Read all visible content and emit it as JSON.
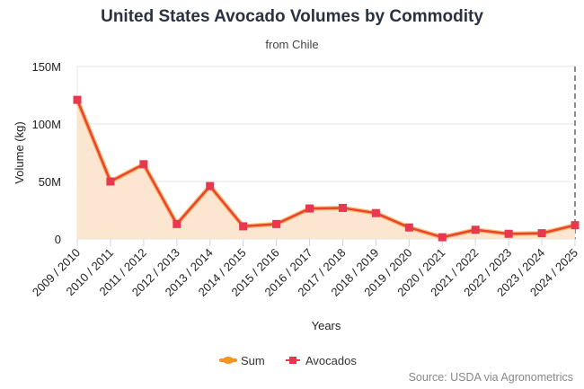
{
  "chart_data": {
    "type": "area",
    "title": "United States Avocado Volumes by Commodity",
    "subtitle": "from Chile",
    "xlabel": "Years",
    "ylabel": "Volume (kg)",
    "ylim": [
      0,
      150000000
    ],
    "yticks": [
      {
        "v": 0,
        "label": "0"
      },
      {
        "v": 50000000,
        "label": "50M"
      },
      {
        "v": 100000000,
        "label": "100M"
      },
      {
        "v": 150000000,
        "label": "150M"
      }
    ],
    "categories": [
      "2009 / 2010",
      "2010 / 2011",
      "2011 / 2012",
      "2012 / 2013",
      "2013 / 2014",
      "2014 / 2015",
      "2015 / 2016",
      "2016 / 2017",
      "2017 / 2018",
      "2018 / 2019",
      "2019 / 2020",
      "2020 / 2021",
      "2021 / 2022",
      "2022 / 2023",
      "2023 / 2024",
      "2024 / 2025"
    ],
    "series": [
      {
        "name": "Sum",
        "color": "#f7931e",
        "values": [
          121000000,
          50000000,
          65000000,
          13000000,
          46000000,
          11000000,
          13000000,
          26500000,
          27000000,
          22500000,
          10000000,
          1500000,
          8000000,
          4500000,
          5000000,
          12000000
        ]
      },
      {
        "name": "Avocados",
        "color": "#e8384f",
        "values": [
          121000000,
          50000000,
          65000000,
          13000000,
          46000000,
          11000000,
          13000000,
          26500000,
          27000000,
          22500000,
          10000000,
          1500000,
          8000000,
          4500000,
          5000000,
          12000000
        ]
      }
    ],
    "grid": true,
    "legend": "bottom",
    "source": "Source: USDA via Agronometrics"
  }
}
